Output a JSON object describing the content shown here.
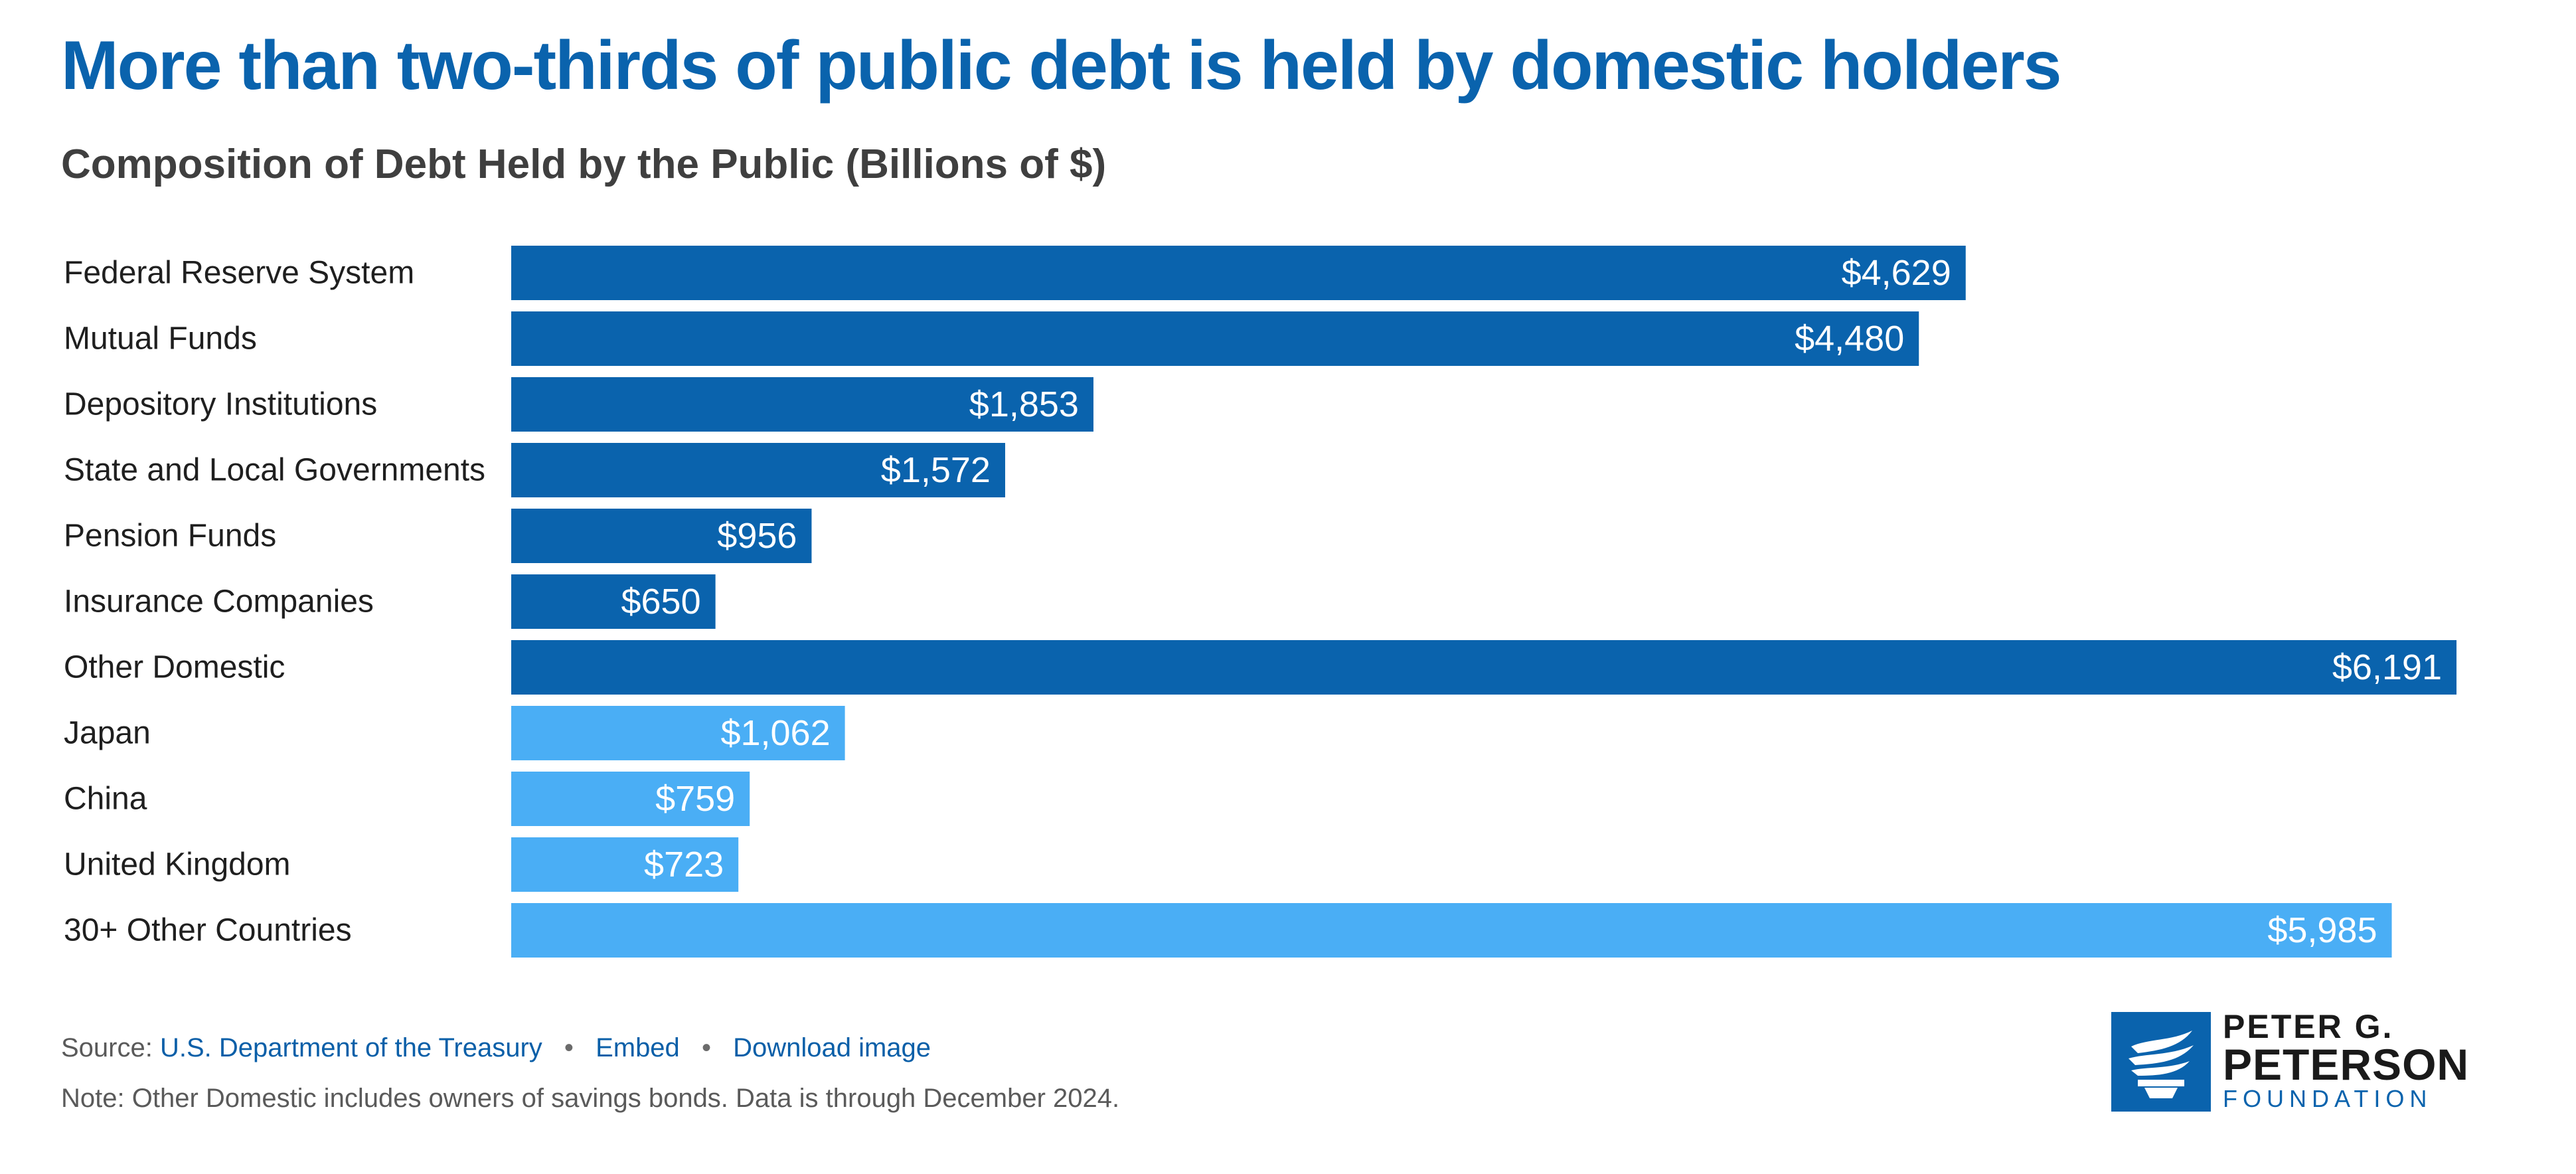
{
  "title": "More than two-thirds of public debt is held by domestic holders",
  "subtitle": "Composition of Debt Held by the Public (Billions of $)",
  "colors": {
    "title": "#0a63ad",
    "domestic": "#0a63ad",
    "foreign": "#4aaef5",
    "bar_text": "#ffffff"
  },
  "chart_data": {
    "type": "bar",
    "orientation": "horizontal",
    "title": "More than two-thirds of public debt is held by domestic holders",
    "subtitle": "Composition of Debt Held by the Public (Billions of $)",
    "categories": [
      "Federal Reserve System",
      "Mutual Funds",
      "Depository Institutions",
      "State and Local Governments",
      "Pension Funds",
      "Insurance Companies",
      "Other Domestic",
      "Japan",
      "China",
      "United Kingdom",
      "30+ Other Countries"
    ],
    "values": [
      4629,
      4480,
      1853,
      1572,
      956,
      650,
      6191,
      1062,
      759,
      723,
      5985
    ],
    "value_labels": [
      "$4,629",
      "$4,480",
      "$1,853",
      "$1,572",
      "$956",
      "$650",
      "$6,191",
      "$1,062",
      "$759",
      "$723",
      "$5,985"
    ],
    "groups": [
      "domestic",
      "domestic",
      "domestic",
      "domestic",
      "domestic",
      "domestic",
      "domestic",
      "foreign",
      "foreign",
      "foreign",
      "foreign"
    ],
    "xlim": [
      0,
      6191
    ],
    "grid": false,
    "legend": "none"
  },
  "footer": {
    "source_prefix": "Source:",
    "source_link": "U.S. Department of the Treasury",
    "embed": "Embed",
    "download": "Download image",
    "separator": "•",
    "note": "Note: Other Domestic includes owners of savings bonds. Data is through December 2024."
  },
  "logo": {
    "line1": "PETER G.",
    "line2": "PETERSON",
    "line3": "FOUNDATION",
    "icon": "torch-logo-icon"
  }
}
